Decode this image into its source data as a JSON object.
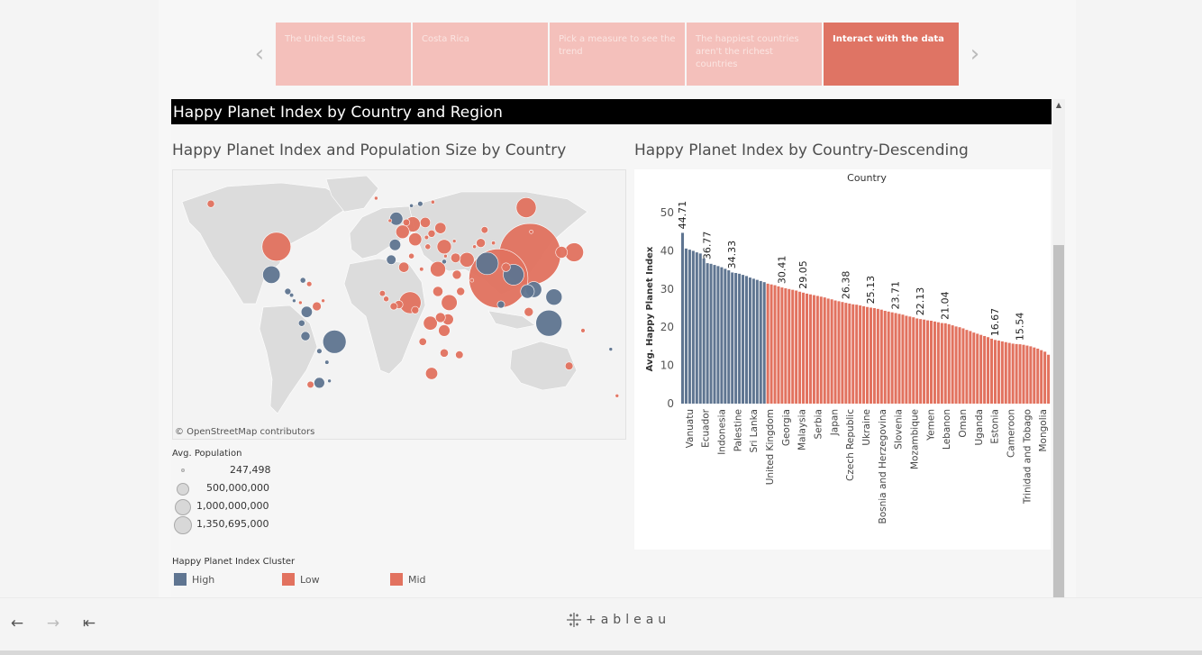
{
  "story": {
    "points": [
      {
        "label": "The United States"
      },
      {
        "label": "Costa Rica"
      },
      {
        "label": "Pick a measure to see the trend"
      },
      {
        "label": "The happiest countries aren't the richest countries"
      },
      {
        "label": "Interact with the data"
      }
    ],
    "active_index": 4,
    "prev_icon": "chevron-left-icon",
    "next_icon": "chevron-right-icon"
  },
  "dashboard": {
    "title": "Happy Planet Index by Country and Region",
    "map_title": "Happy Planet Index and Population Size by Country",
    "bar_title": "Happy Planet Index by Country-Descending",
    "map_credit": "© OpenStreetMap contributors"
  },
  "size_legend": {
    "title": "Avg. Population",
    "entries": [
      "247,498",
      "500,000,000",
      "1,000,000,000",
      "1,350,695,000"
    ]
  },
  "color_legend": {
    "title": "Happy Planet Index Cluster",
    "entries": [
      {
        "label": "High",
        "color": "#5f7591"
      },
      {
        "label": "Low",
        "color": "#e2725f"
      },
      {
        "label": "Mid",
        "color": "#e2725f"
      }
    ]
  },
  "colors": {
    "high": "#5f7591",
    "low_mid": "#e2725f",
    "accent": "#df7464",
    "land": "#dcdcdc"
  },
  "toolbar": {
    "undo_icon": "undo-arrow-icon",
    "redo_icon": "redo-arrow-icon",
    "revert_icon": "revert-icon",
    "logo_text": "+ableau"
  },
  "chart_data": {
    "type": "bar",
    "title": "",
    "column_header": "Country",
    "ylabel": "Avg. Happy Planet Index",
    "ylim": [
      0,
      50
    ],
    "yticks": [
      0,
      10,
      20,
      30,
      40,
      50
    ],
    "grid": false,
    "x_tick_labels": [
      "Vanuatu",
      "Ecuador",
      "Indonesia",
      "Palestine",
      "Sri Lanka",
      "United Kingdom",
      "Georgia",
      "Malaysia",
      "Serbia",
      "Japan",
      "Czech Republic",
      "Ukraine",
      "Bosnia and Herzegovina",
      "Slovenia",
      "Mozambique",
      "Yemen",
      "Lebanon",
      "Oman",
      "Uganda",
      "Estonia",
      "Cameroon",
      "Trinidad and Tobago",
      "Mongolia"
    ],
    "data_labels": [
      {
        "value": 44.71,
        "index": 0
      },
      {
        "value": 36.77,
        "index": 7
      },
      {
        "value": 34.33,
        "index": 14
      },
      {
        "value": 30.41,
        "index": 28
      },
      {
        "value": 29.05,
        "index": 34
      },
      {
        "value": 26.38,
        "index": 46
      },
      {
        "value": 25.13,
        "index": 53
      },
      {
        "value": 23.71,
        "index": 60
      },
      {
        "value": 22.13,
        "index": 67
      },
      {
        "value": 21.04,
        "index": 74
      },
      {
        "value": 16.67,
        "index": 88
      },
      {
        "value": 15.54,
        "index": 95
      }
    ],
    "high_cluster_count": 24,
    "bar_count": 104,
    "values": [
      44.71,
      40.6,
      40.3,
      40.0,
      39.6,
      39.3,
      38.0,
      36.77,
      36.6,
      36.3,
      36.0,
      35.7,
      35.3,
      34.9,
      34.33,
      34.2,
      34.0,
      33.7,
      33.4,
      33.0,
      32.7,
      32.4,
      32.1,
      31.8,
      31.4,
      31.2,
      31.0,
      30.7,
      30.41,
      30.2,
      30.0,
      29.8,
      29.6,
      29.3,
      29.05,
      28.8,
      28.6,
      28.4,
      28.2,
      28.0,
      27.8,
      27.5,
      27.3,
      27.0,
      26.8,
      26.6,
      26.38,
      26.2,
      26.0,
      25.9,
      25.7,
      25.5,
      25.3,
      25.13,
      25.0,
      24.8,
      24.6,
      24.3,
      24.1,
      23.9,
      23.71,
      23.5,
      23.3,
      23.0,
      22.8,
      22.6,
      22.3,
      22.13,
      22.0,
      21.8,
      21.7,
      21.5,
      21.3,
      21.1,
      21.04,
      20.8,
      20.5,
      20.2,
      20.0,
      19.7,
      19.3,
      19.0,
      18.6,
      18.3,
      18.0,
      17.7,
      17.4,
      17.0,
      16.67,
      16.5,
      16.3,
      16.1,
      15.9,
      15.7,
      15.6,
      15.54,
      15.4,
      15.2,
      15.0,
      14.7,
      14.4,
      14.0,
      13.6,
      12.8
    ]
  },
  "map_data": {
    "bubbles": [
      {
        "lon": -98,
        "lat": 39,
        "pop": 300000000,
        "cluster": "low"
      },
      {
        "lon": -102,
        "lat": 24,
        "pop": 110000000,
        "cluster": "high"
      },
      {
        "lon": -150,
        "lat": 62,
        "pop": 20000000,
        "cluster": "low"
      },
      {
        "lon": -52,
        "lat": -12,
        "pop": 195000000,
        "cluster": "high"
      },
      {
        "lon": -74,
        "lat": 4,
        "pop": 45000000,
        "cluster": "high"
      },
      {
        "lon": -64,
        "lat": -34,
        "pop": 40000000,
        "cluster": "high"
      },
      {
        "lon": -71,
        "lat": -35,
        "pop": 17000000,
        "cluster": "low"
      },
      {
        "lon": -75,
        "lat": -9,
        "pop": 30000000,
        "cluster": "high"
      },
      {
        "lon": -66,
        "lat": 7,
        "pop": 28000000,
        "cluster": "low"
      },
      {
        "lon": -86,
        "lat": 13,
        "pop": 6000000,
        "cluster": "high"
      },
      {
        "lon": -79,
        "lat": 9,
        "pop": 3500000,
        "cluster": "low"
      },
      {
        "lon": -84,
        "lat": 10,
        "pop": 4600000,
        "cluster": "high"
      },
      {
        "lon": -89,
        "lat": 15,
        "pop": 14000000,
        "cluster": "high"
      },
      {
        "lon": -64,
        "lat": -17,
        "pop": 10000000,
        "cluster": "high"
      },
      {
        "lon": -58,
        "lat": -23,
        "pop": 6000000,
        "cluster": "high"
      },
      {
        "lon": -56,
        "lat": -33,
        "pop": 3400000,
        "cluster": "high"
      },
      {
        "lon": -78,
        "lat": -2,
        "pop": 15000000,
        "cluster": "high"
      },
      {
        "lon": -72,
        "lat": 19,
        "pop": 10000000,
        "cluster": "low"
      },
      {
        "lon": -77,
        "lat": 21,
        "pop": 11000000,
        "cluster": "high"
      },
      {
        "lon": -61,
        "lat": 10,
        "pop": 1300000,
        "cluster": "low"
      },
      {
        "lon": -3,
        "lat": 54,
        "pop": 62000000,
        "cluster": "high"
      },
      {
        "lon": 2,
        "lat": 47,
        "pop": 65000000,
        "cluster": "low"
      },
      {
        "lon": 10,
        "lat": 51,
        "pop": 82000000,
        "cluster": "low"
      },
      {
        "lon": -4,
        "lat": 40,
        "pop": 46000000,
        "cluster": "high"
      },
      {
        "lon": 12,
        "lat": 43,
        "pop": 60000000,
        "cluster": "low"
      },
      {
        "lon": 20,
        "lat": 52,
        "pop": 38000000,
        "cluster": "low"
      },
      {
        "lon": 32,
        "lat": 49,
        "pop": 45000000,
        "cluster": "low"
      },
      {
        "lon": 16,
        "lat": 62,
        "pop": 9500000,
        "cluster": "high"
      },
      {
        "lon": 9,
        "lat": 61,
        "pop": 5000000,
        "cluster": "high"
      },
      {
        "lon": 26,
        "lat": 63,
        "pop": 5400000,
        "cluster": "low"
      },
      {
        "lon": -19,
        "lat": 65,
        "pop": 320000,
        "cluster": "low"
      },
      {
        "lon": -8,
        "lat": 53,
        "pop": 4600000,
        "cluster": "low"
      },
      {
        "lon": 5,
        "lat": 52,
        "pop": 17000000,
        "cluster": "low"
      },
      {
        "lon": 25,
        "lat": 46,
        "pop": 20000000,
        "cluster": "low"
      },
      {
        "lon": 21,
        "lat": 44,
        "pop": 7000000,
        "cluster": "low"
      },
      {
        "lon": 22,
        "lat": 39,
        "pop": 11000000,
        "cluster": "low"
      },
      {
        "lon": 35,
        "lat": 39,
        "pop": 75000000,
        "cluster": "low"
      },
      {
        "lon": 100,
        "lat": 60,
        "pop": 143000000,
        "cluster": "low"
      },
      {
        "lon": 67,
        "lat": 48,
        "pop": 17000000,
        "cluster": "low"
      },
      {
        "lon": 53,
        "lat": 32,
        "pop": 77000000,
        "cluster": "low"
      },
      {
        "lon": 44,
        "lat": 33,
        "pop": 33000000,
        "cluster": "low"
      },
      {
        "lon": 45,
        "lat": 24,
        "pop": 29000000,
        "cluster": "low"
      },
      {
        "lon": 30,
        "lat": 27,
        "pop": 85000000,
        "cluster": "low"
      },
      {
        "lon": 3,
        "lat": 28,
        "pop": 38000000,
        "cluster": "low"
      },
      {
        "lon": 17,
        "lat": 27,
        "pop": 6000000,
        "cluster": "low"
      },
      {
        "lon": -7,
        "lat": 32,
        "pop": 33000000,
        "cluster": "high"
      },
      {
        "lon": 9,
        "lat": 34,
        "pop": 11000000,
        "cluster": "low"
      },
      {
        "lon": 8,
        "lat": 9,
        "pop": 170000000,
        "cluster": "low"
      },
      {
        "lon": 39,
        "lat": 9,
        "pop": 90000000,
        "cluster": "low"
      },
      {
        "lon": 30,
        "lat": 15,
        "pop": 37000000,
        "cluster": "low"
      },
      {
        "lon": 24,
        "lat": -2,
        "pop": 70000000,
        "cluster": "low"
      },
      {
        "lon": 35,
        "lat": -6,
        "pop": 48000000,
        "cluster": "low"
      },
      {
        "lon": 38,
        "lat": 0,
        "pop": 43000000,
        "cluster": "low"
      },
      {
        "lon": 25,
        "lat": -29,
        "pop": 52000000,
        "cluster": "low"
      },
      {
        "lon": 35,
        "lat": -18,
        "pop": 25000000,
        "cluster": "low"
      },
      {
        "lon": 18,
        "lat": -12,
        "pop": 21000000,
        "cluster": "low"
      },
      {
        "lon": 47,
        "lat": -19,
        "pop": 22000000,
        "cluster": "low"
      },
      {
        "lon": -1,
        "lat": 8,
        "pop": 25000000,
        "cluster": "low"
      },
      {
        "lon": -5,
        "lat": 7,
        "pop": 20000000,
        "cluster": "low"
      },
      {
        "lon": -14,
        "lat": 14,
        "pop": 13000000,
        "cluster": "low"
      },
      {
        "lon": -11,
        "lat": 11,
        "pop": 11000000,
        "cluster": "low"
      },
      {
        "lon": 12,
        "lat": 5,
        "pop": 20000000,
        "cluster": "low"
      },
      {
        "lon": 32,
        "lat": 1,
        "pop": 35000000,
        "cluster": "low"
      },
      {
        "lon": 78,
        "lat": 22,
        "pop": 1250000000,
        "cluster": "low"
      },
      {
        "lon": 103,
        "lat": 35,
        "pop": 1350695000,
        "cluster": "low"
      },
      {
        "lon": 69,
        "lat": 30,
        "pop": 180000000,
        "cluster": "high"
      },
      {
        "lon": 90,
        "lat": 24,
        "pop": 155000000,
        "cluster": "high"
      },
      {
        "lon": 106,
        "lat": 16,
        "pop": 90000000,
        "cluster": "high"
      },
      {
        "lon": 101,
        "lat": 15,
        "pop": 67000000,
        "cluster": "high"
      },
      {
        "lon": 118,
        "lat": -2,
        "pop": 245000000,
        "cluster": "high"
      },
      {
        "lon": 122,
        "lat": 12,
        "pop": 95000000,
        "cluster": "high"
      },
      {
        "lon": 138,
        "lat": 36,
        "pop": 127000000,
        "cluster": "low"
      },
      {
        "lon": 128,
        "lat": 36,
        "pop": 50000000,
        "cluster": "low"
      },
      {
        "lon": 104,
        "lat": 47,
        "pop": 2800000,
        "cluster": "low"
      },
      {
        "lon": 102,
        "lat": 4,
        "pop": 29000000,
        "cluster": "low"
      },
      {
        "lon": 134,
        "lat": -25,
        "pop": 23000000,
        "cluster": "low"
      },
      {
        "lon": 172,
        "lat": -41,
        "pop": 4400000,
        "cluster": "low"
      },
      {
        "lon": 167,
        "lat": -16,
        "pop": 247498,
        "cluster": "high"
      },
      {
        "lon": 145,
        "lat": -6,
        "pop": 7000000,
        "cluster": "low"
      },
      {
        "lon": 80,
        "lat": 8,
        "pop": 20000000,
        "cluster": "high"
      },
      {
        "lon": 84,
        "lat": 28,
        "pop": 27000000,
        "cluster": "low"
      },
      {
        "lon": 74,
        "lat": 41,
        "pop": 5600000,
        "cluster": "low"
      },
      {
        "lon": 64,
        "lat": 41,
        "pop": 29000000,
        "cluster": "low"
      },
      {
        "lon": 59,
        "lat": 39,
        "pop": 5200000,
        "cluster": "low"
      },
      {
        "lon": 35,
        "lat": 31,
        "pop": 7800000,
        "cluster": "high"
      },
      {
        "lon": 57,
        "lat": 21,
        "pop": 3000000,
        "cluster": "low"
      },
      {
        "lon": 48,
        "lat": 15,
        "pop": 24000000,
        "cluster": "low"
      },
      {
        "lon": 36,
        "lat": 34,
        "pop": 4300000,
        "cluster": "low"
      },
      {
        "lon": 43,
        "lat": 42,
        "pop": 4500000,
        "cluster": "low"
      }
    ]
  }
}
